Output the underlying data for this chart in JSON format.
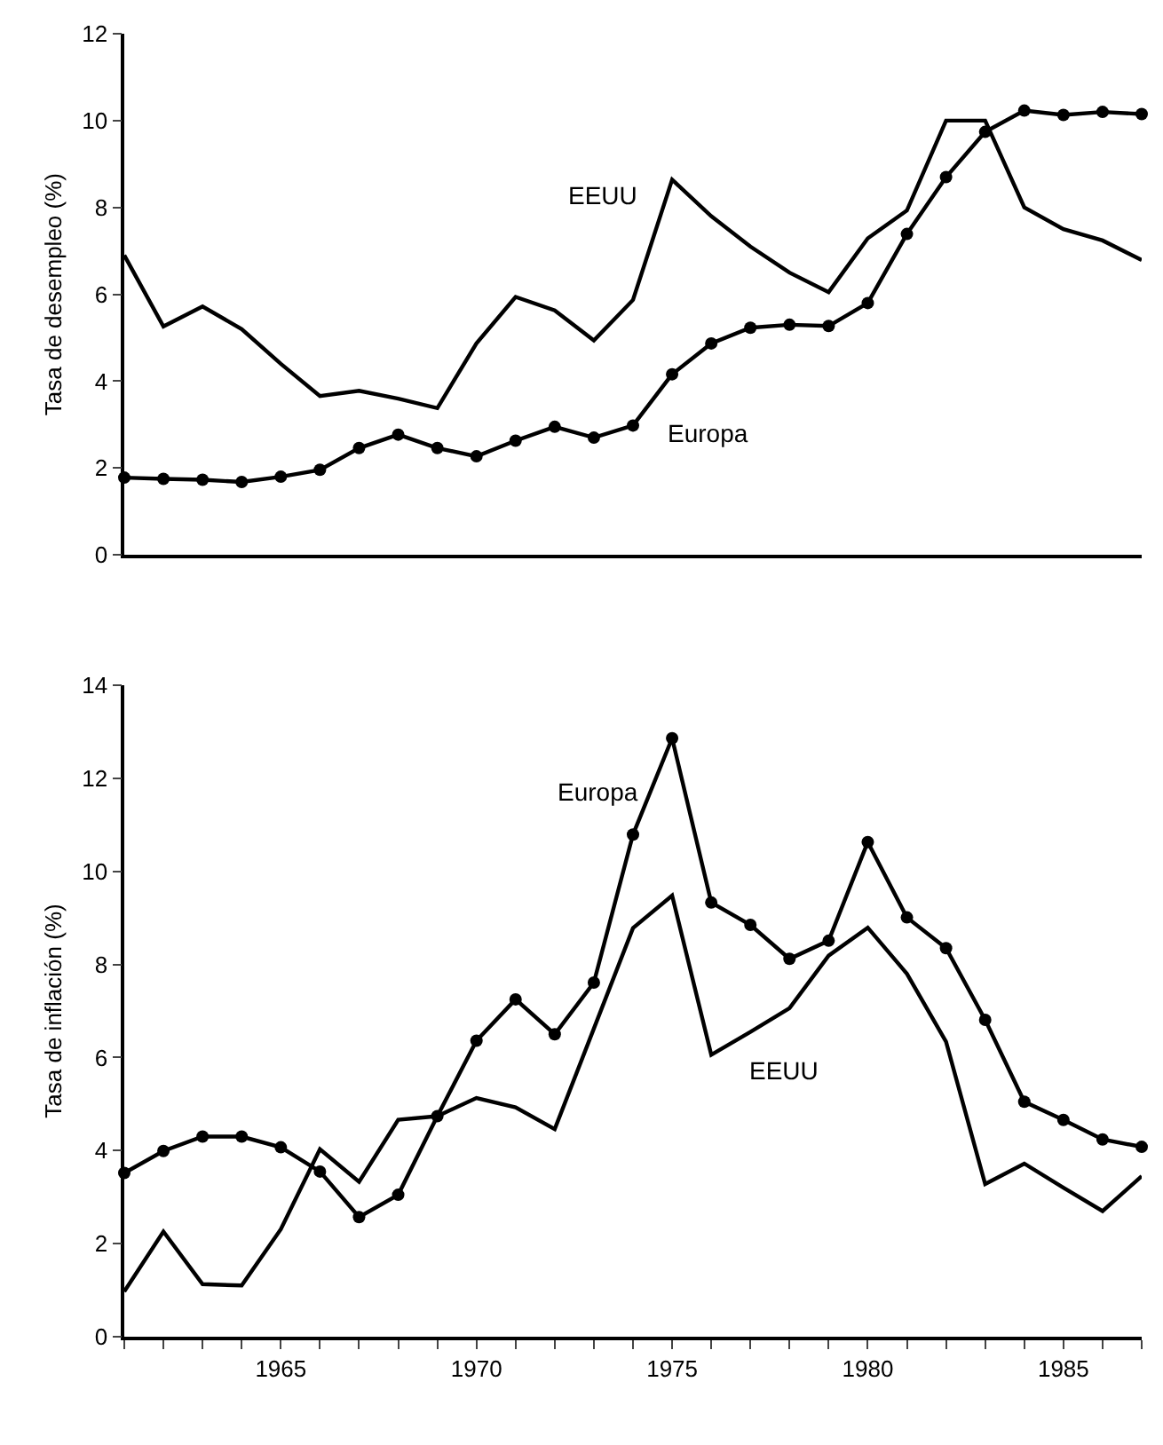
{
  "chart_data": [
    {
      "type": "line",
      "ylabel": "Tasa de desempleo (%)",
      "x": [
        1961,
        1962,
        1963,
        1964,
        1965,
        1966,
        1967,
        1968,
        1969,
        1970,
        1971,
        1972,
        1973,
        1974,
        1975,
        1976,
        1977,
        1978,
        1979,
        1980,
        1981,
        1982,
        1983,
        1984,
        1985,
        1986,
        1987
      ],
      "xlim": [
        1961,
        1987
      ],
      "ylim": [
        0,
        12
      ],
      "yticks": [
        0,
        2,
        4,
        6,
        8,
        10,
        12
      ],
      "tick_labels": "y",
      "legend": false,
      "series": [
        {
          "name": "EEUU",
          "color": "#000000",
          "marker": "none",
          "values": [
            6.9,
            5.26,
            5.72,
            5.2,
            4.4,
            3.66,
            3.78,
            3.6,
            3.38,
            4.87,
            5.94,
            5.63,
            4.94,
            5.87,
            8.64,
            7.8,
            7.1,
            6.5,
            6.05,
            7.29,
            7.93,
            10.0,
            10.0,
            8.0,
            7.5,
            7.24,
            6.79
          ]
        },
        {
          "name": "Europa",
          "color": "#000000",
          "marker": "circle",
          "values": [
            1.78,
            1.75,
            1.73,
            1.68,
            1.8,
            1.96,
            2.46,
            2.77,
            2.46,
            2.27,
            2.63,
            2.95,
            2.7,
            2.98,
            4.16,
            4.87,
            5.23,
            5.3,
            5.27,
            5.8,
            7.39,
            8.7,
            9.74,
            10.23,
            10.13,
            10.2,
            10.15
          ]
        }
      ]
    },
    {
      "type": "line",
      "ylabel": "Tasa de inflación (%)",
      "x": [
        1961,
        1962,
        1963,
        1964,
        1965,
        1966,
        1967,
        1968,
        1969,
        1970,
        1971,
        1972,
        1973,
        1974,
        1975,
        1976,
        1977,
        1978,
        1979,
        1980,
        1981,
        1982,
        1983,
        1984,
        1985,
        1986,
        1987
      ],
      "xlim": [
        1961,
        1987
      ],
      "ylim": [
        0,
        14
      ],
      "yticks": [
        0,
        2,
        4,
        6,
        8,
        10,
        12,
        14
      ],
      "xticks": [
        {
          "value": 1961,
          "label": null
        },
        {
          "value": 1962,
          "label": null
        },
        {
          "value": 1963,
          "label": null
        },
        {
          "value": 1964,
          "label": null
        },
        1965,
        {
          "value": 1966,
          "label": null
        },
        {
          "value": 1967,
          "label": null
        },
        {
          "value": 1968,
          "label": null
        },
        {
          "value": 1969,
          "label": null
        },
        1970,
        {
          "value": 1971,
          "label": null
        },
        {
          "value": 1972,
          "label": null
        },
        {
          "value": 1973,
          "label": null
        },
        {
          "value": 1974,
          "label": null
        },
        1975,
        {
          "value": 1976,
          "label": null
        },
        {
          "value": 1977,
          "label": null
        },
        {
          "value": 1978,
          "label": null
        },
        {
          "value": 1979,
          "label": null
        },
        1980,
        {
          "value": 1981,
          "label": null
        },
        {
          "value": 1982,
          "label": null
        },
        {
          "value": 1983,
          "label": null
        },
        {
          "value": 1984,
          "label": null
        },
        1985,
        {
          "value": 1986,
          "label": null
        },
        {
          "value": 1987,
          "label": null
        }
      ],
      "legend": false,
      "series": [
        {
          "name": "EEUU",
          "color": "#000000",
          "marker": "none",
          "values": [
            0.97,
            2.26,
            1.13,
            1.1,
            2.31,
            4.03,
            3.33,
            4.66,
            4.74,
            5.13,
            4.93,
            4.46,
            6.62,
            8.78,
            9.48,
            6.06,
            6.55,
            7.06,
            8.19,
            8.79,
            7.8,
            6.34,
            3.28,
            3.72,
            3.2,
            2.7,
            3.45
          ]
        },
        {
          "name": "Europa",
          "color": "#000000",
          "marker": "circle",
          "values": [
            3.52,
            3.99,
            4.3,
            4.3,
            4.07,
            3.55,
            2.57,
            3.05,
            4.74,
            6.36,
            7.25,
            6.5,
            7.61,
            10.79,
            12.86,
            9.33,
            8.85,
            8.12,
            8.51,
            10.63,
            9.01,
            8.35,
            6.81,
            5.05,
            4.66,
            4.24,
            4.08
          ]
        }
      ]
    }
  ]
}
